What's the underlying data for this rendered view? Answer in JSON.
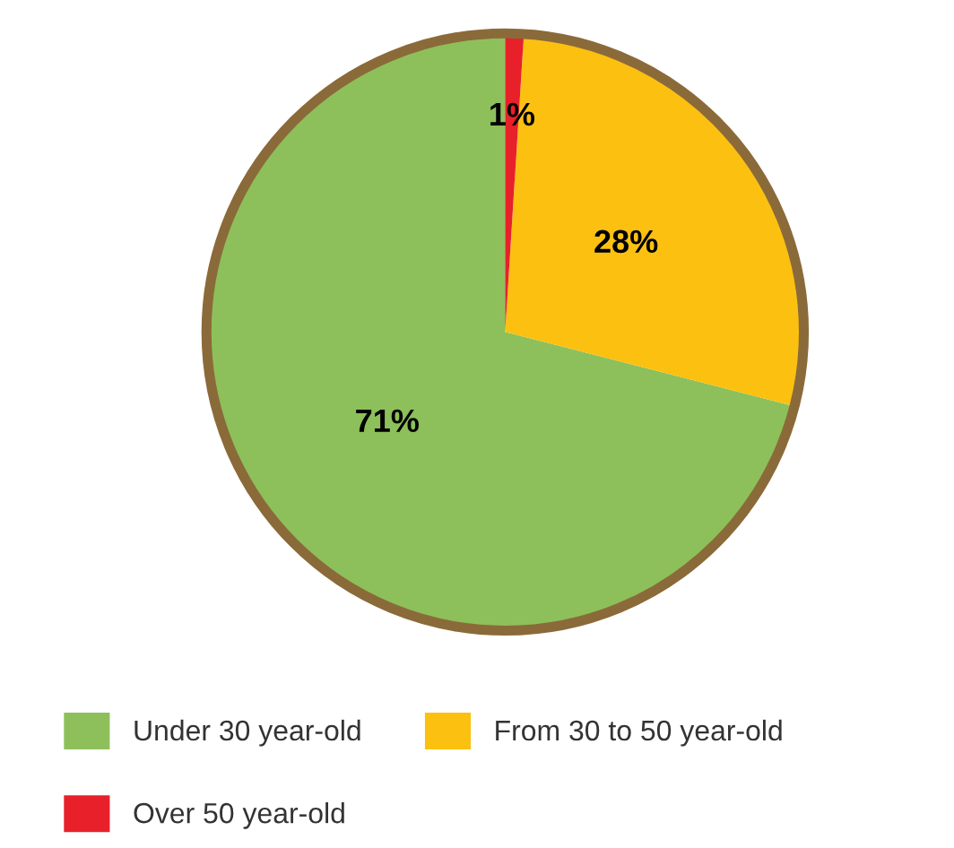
{
  "chart_data": {
    "type": "pie",
    "categories": [
      "Under 30 year-old",
      "From 30 to 50 year-old",
      "Over 50 year-old"
    ],
    "values": [
      71,
      28,
      1
    ],
    "colors": [
      "#8dc05a",
      "#fcc010",
      "#e8202a"
    ],
    "value_labels": [
      "71%",
      "28%",
      "1%"
    ],
    "legend": "bottom"
  }
}
